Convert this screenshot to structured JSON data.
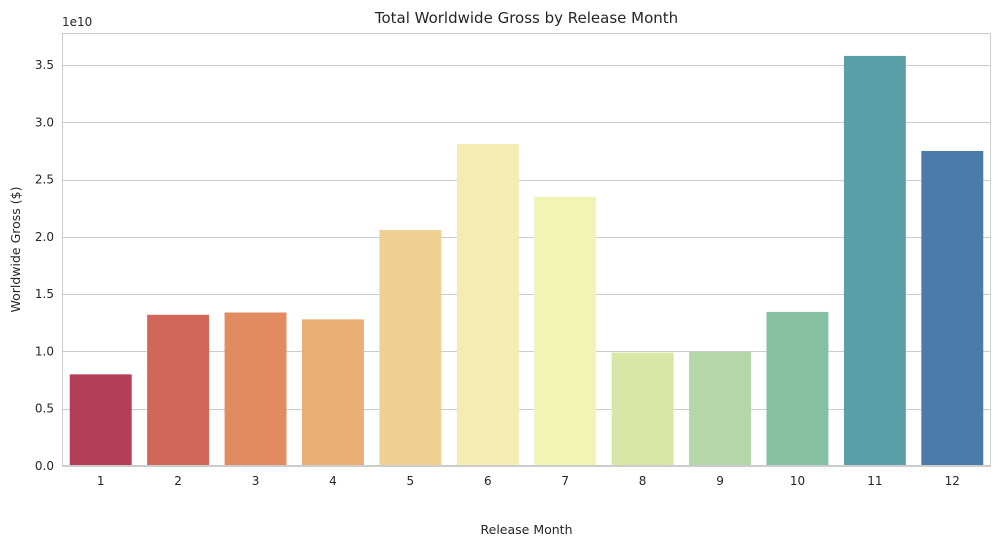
{
  "chart_data": {
    "type": "bar",
    "title": "Total Worldwide Gross by Release Month",
    "xlabel": "Release Month",
    "ylabel": "Worldwide Gross ($)",
    "y_scale_label": "1e10",
    "categories": [
      "1",
      "2",
      "3",
      "4",
      "5",
      "6",
      "7",
      "8",
      "9",
      "10",
      "11",
      "12"
    ],
    "values": [
      8000000000.0,
      13200000000.0,
      13400000000.0,
      12800000000.0,
      20600000000.0,
      28100000000.0,
      23500000000.0,
      9900000000.0,
      9950000000.0,
      13450000000.0,
      35800000000.0,
      27500000000.0
    ],
    "colors": [
      "#b43e55",
      "#d26659",
      "#e28a62",
      "#eaaf74",
      "#f0d193",
      "#f4ecb3",
      "#f2f4b6",
      "#d8e7a6",
      "#b4d7a9",
      "#86c0a3",
      "#5a9fa7",
      "#4b7ba8"
    ],
    "ylim": [
      0,
      37800000000.0
    ],
    "yticks": [
      0,
      5000000000.0,
      10000000000.0,
      15000000000.0,
      20000000000.0,
      25000000000.0,
      30000000000.0,
      35000000000.0
    ],
    "ytick_labels": [
      "0.0",
      "0.5",
      "1.0",
      "1.5",
      "2.0",
      "2.5",
      "3.0",
      "3.5"
    ],
    "grid": true,
    "grid_axis": "y"
  }
}
